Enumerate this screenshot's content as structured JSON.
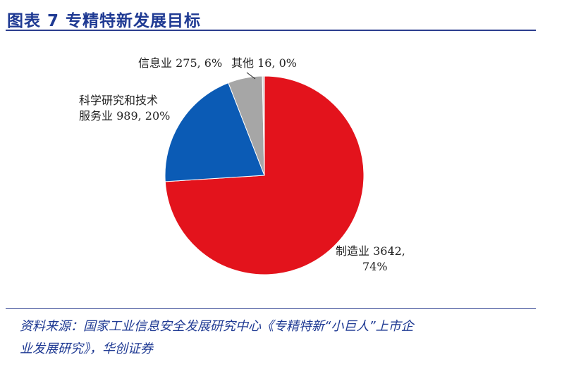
{
  "header": {
    "title": "图表  7    专精特新发展目标"
  },
  "chart_data": {
    "type": "pie",
    "title": "",
    "slices": [
      {
        "name": "制造业",
        "value": 3642,
        "percent": "74%",
        "color": "#e3131c",
        "label_lines": [
          "制造业 3642,",
          "74%"
        ]
      },
      {
        "name": "科学研究和技术服务业",
        "value": 989,
        "percent": "20%",
        "color": "#0b5bb5",
        "label_lines": [
          "科学研究和技术",
          "服务业 989, 20%"
        ]
      },
      {
        "name": "信息业",
        "value": 275,
        "percent": "6%",
        "color": "#a6a6a6",
        "label_lines": [
          "信息业 275, 6%"
        ]
      },
      {
        "name": "其他",
        "value": 16,
        "percent": "0%",
        "color": "#d9d9d9",
        "label_lines": [
          "其他 16, 0%"
        ]
      }
    ]
  },
  "footer": {
    "source_line1": "资料来源：国家工业信息安全发展研究中心《专精特新“小巨人”上市企",
    "source_line2": "业发展研究》，华创证券"
  }
}
